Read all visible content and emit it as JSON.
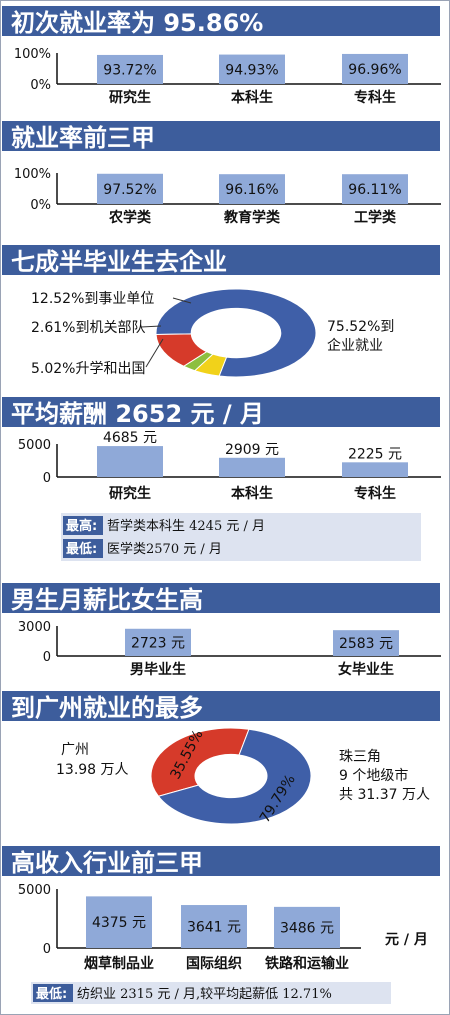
{
  "colors": {
    "bar": "#8fa9d8",
    "title_bg": "#3d5d9c",
    "blue": "#3f5fa8",
    "red": "#d63a2a",
    "yellow": "#f1d21a",
    "green": "#8cbf3f",
    "note_bg": "#dde3f0"
  },
  "sections": {
    "s1": {
      "title": "初次就业率为 95.86%"
    },
    "s2": {
      "title": "就业率前三甲"
    },
    "s3": {
      "title": "七成半毕业生去企业"
    },
    "s4": {
      "title": "平均薪酬 2652 元 / 月"
    },
    "s5": {
      "title": "男生月薪比女生高"
    },
    "s6": {
      "title": "到广州就业的最多"
    },
    "s7": {
      "title": "高收入行业前三甲"
    }
  },
  "notes": {
    "s4_high_key": "最高:",
    "s4_high_text": "哲学类本科生 4245 元 / 月",
    "s4_low_key": "最低:",
    "s4_low_text": "医学类2570 元 / 月",
    "s7_low_key": "最低:",
    "s7_low_text": "纺织业 2315 元 / 月,较平均起薪低 12.71%"
  },
  "unit_label": "元 / 月",
  "chart_data": [
    {
      "type": "bar",
      "title": "初次就业率为 95.86%",
      "categories": [
        "研究生",
        "本科生",
        "专科生"
      ],
      "values": [
        93.72,
        94.93,
        96.96
      ],
      "value_labels": [
        "93.72%",
        "94.93%",
        "96.96%"
      ],
      "yticks": [
        "100%",
        "0%"
      ],
      "ylim": [
        0,
        100
      ],
      "grid": false
    },
    {
      "type": "bar",
      "title": "就业率前三甲",
      "categories": [
        "农学类",
        "教育学类",
        "工学类"
      ],
      "values": [
        97.52,
        96.16,
        96.11
      ],
      "value_labels": [
        "97.52%",
        "96.16%",
        "96.11%"
      ],
      "yticks": [
        "100%",
        "0%"
      ],
      "ylim": [
        0,
        100
      ],
      "grid": false
    },
    {
      "type": "pie",
      "title": "七成半毕业生去企业",
      "slices": [
        {
          "label": "75.52%到企业就业",
          "value": 75.52,
          "color": "#3f5fa8"
        },
        {
          "label": "5.02%升学和出国",
          "value": 5.02,
          "color": "#f1d21a"
        },
        {
          "label": "2.61%到机关部队",
          "value": 2.61,
          "color": "#8cbf3f"
        },
        {
          "label": "12.52%到事业单位",
          "value": 12.52,
          "color": "#d63a2a"
        }
      ],
      "label_lines": {
        "enterprise": [
          "75.52%到",
          "企业就业"
        ]
      }
    },
    {
      "type": "bar",
      "title": "平均薪酬 2652 元 / 月",
      "categories": [
        "研究生",
        "本科生",
        "专科生"
      ],
      "values": [
        4685,
        2909,
        2225
      ],
      "value_labels": [
        "4685 元",
        "2909 元",
        "2225 元"
      ],
      "yticks": [
        "5000",
        "0"
      ],
      "ylim": [
        0,
        5000
      ],
      "grid": false
    },
    {
      "type": "bar",
      "title": "男生月薪比女生高",
      "categories": [
        "男毕业生",
        "女毕业生"
      ],
      "values": [
        2723,
        2583
      ],
      "value_labels": [
        "2723 元",
        "2583 元"
      ],
      "yticks": [
        "3000",
        "0"
      ],
      "ylim": [
        0,
        3000
      ],
      "grid": false
    },
    {
      "type": "pie",
      "title": "到广州就业的最多",
      "slices": [
        {
          "label": "35.55%",
          "value": 35.55,
          "color": "#d63a2a"
        },
        {
          "label": "79.79%",
          "value": 64.45,
          "color": "#3f5fa8"
        }
      ],
      "side_labels": {
        "guangzhou": [
          "广州",
          "13.98 万人"
        ],
        "delta": [
          "珠三角",
          "9 个地级市",
          "共 31.37 万人"
        ]
      }
    },
    {
      "type": "bar",
      "title": "高收入行业前三甲",
      "categories": [
        "烟草制品业",
        "国际组织",
        "铁路和运输业"
      ],
      "values": [
        4375,
        3641,
        3486
      ],
      "value_labels": [
        "4375 元",
        "3641 元",
        "3486 元"
      ],
      "yticks": [
        "5000",
        "0"
      ],
      "ylim": [
        0,
        5000
      ],
      "unit": "元 / 月",
      "grid": false
    }
  ]
}
